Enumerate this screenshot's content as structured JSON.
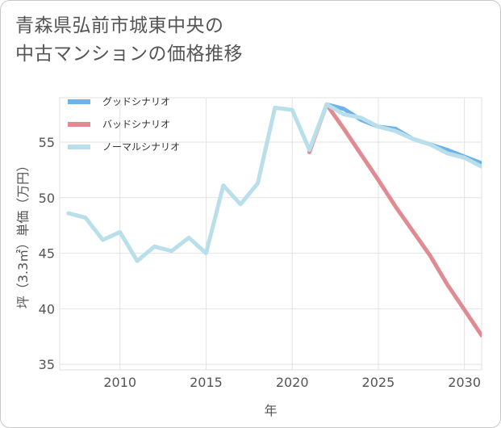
{
  "title_line1": "青森県弘前市城東中央の",
  "title_line2": "中古マンションの価格推移",
  "chart_data": {
    "type": "line",
    "title": "青森県弘前市城東中央の中古マンションの価格推移",
    "xlabel": "年",
    "ylabel": "坪（3.3㎡）単価（万円）",
    "xlim": [
      2006.5,
      2031
    ],
    "ylim": [
      34.5,
      59
    ],
    "x_ticks": [
      "2010",
      "2015",
      "2020",
      "2025",
      "2030"
    ],
    "y_ticks": [
      "35",
      "40",
      "45",
      "50",
      "55"
    ],
    "grid": true,
    "legend": "top-left",
    "series": [
      {
        "name": "グッドシナリオ",
        "color": "#6db3e8",
        "x": [
          2022,
          2023,
          2024,
          2025,
          2026,
          2027,
          2028,
          2029,
          2030,
          2031
        ],
        "y": [
          58.4,
          58.0,
          57.0,
          56.4,
          56.2,
          55.3,
          54.8,
          54.3,
          53.7,
          53.1
        ]
      },
      {
        "name": "バッドシナリオ",
        "color": "#e08b92",
        "x": [
          2021,
          2022,
          2023,
          2024,
          2025,
          2026,
          2027,
          2028,
          2029,
          2030,
          2031
        ],
        "y": [
          54.1,
          58.4,
          56.2,
          53.9,
          51.6,
          49.2,
          47.0,
          44.8,
          42.2,
          39.9,
          37.6
        ]
      },
      {
        "name": "ノーマルシナリオ",
        "color": "#b9dfeb",
        "x": [
          2007,
          2008,
          2009,
          2010,
          2011,
          2012,
          2013,
          2014,
          2015,
          2016,
          2017,
          2018,
          2019,
          2020,
          2021,
          2022,
          2023,
          2024,
          2025,
          2026,
          2027,
          2028,
          2029,
          2030,
          2031
        ],
        "y": [
          48.6,
          48.2,
          46.2,
          46.9,
          44.3,
          45.6,
          45.2,
          46.4,
          45.0,
          51.1,
          49.4,
          51.3,
          58.1,
          57.9,
          54.3,
          58.4,
          57.5,
          57.2,
          56.4,
          56.0,
          55.3,
          54.8,
          54.0,
          53.6,
          52.8
        ]
      }
    ]
  }
}
